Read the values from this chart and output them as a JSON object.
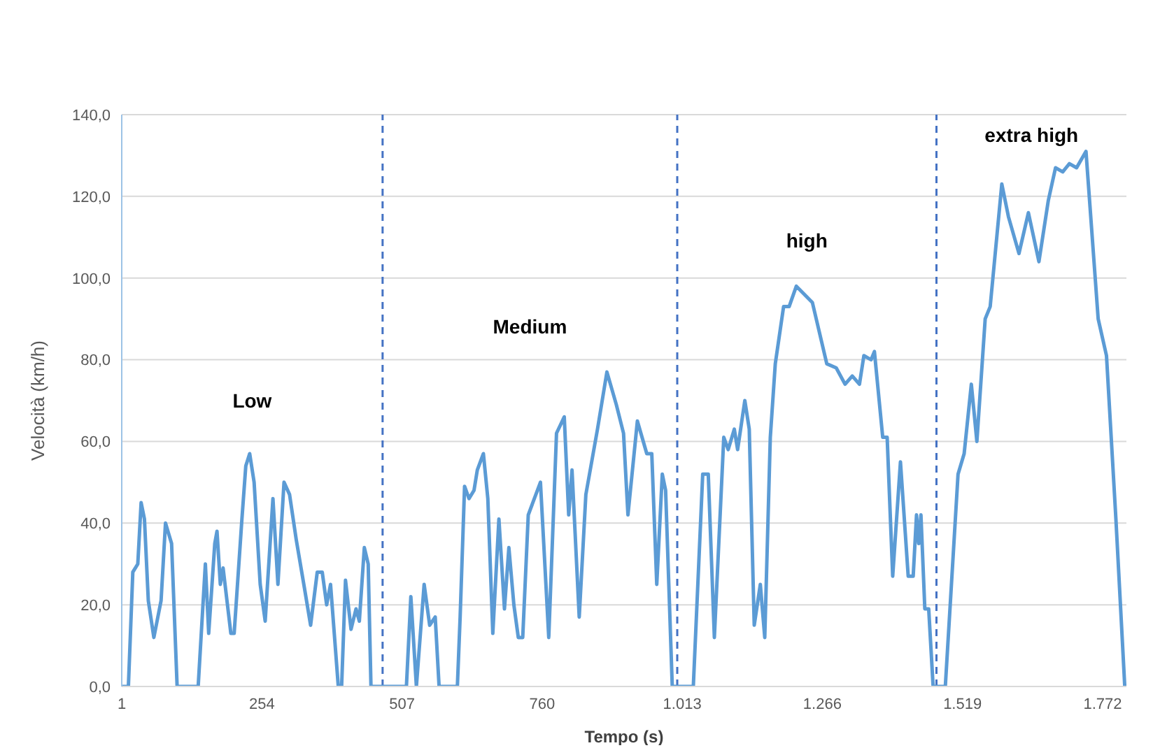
{
  "chart_data": {
    "type": "line",
    "xlabel": "Tempo (s)",
    "ylabel": "Velocità (km/h)",
    "x": [
      1,
      13,
      21,
      30,
      36,
      42,
      49,
      59,
      72,
      80,
      91,
      101,
      139,
      152,
      158,
      169,
      173,
      179,
      184,
      198,
      204,
      218,
      225,
      232,
      240,
      251,
      260,
      274,
      283,
      294,
      304,
      316,
      331,
      342,
      354,
      363,
      371,
      378,
      392,
      398,
      405,
      415,
      424,
      430,
      439,
      446,
      451,
      515,
      523,
      533,
      547,
      557,
      567,
      574,
      607,
      612,
      620,
      628,
      637,
      643,
      654,
      662,
      671,
      682,
      692,
      700,
      709,
      717,
      725,
      735,
      746,
      757,
      772,
      786,
      800,
      808,
      814,
      827,
      839,
      860,
      877,
      894,
      907,
      915,
      932,
      949,
      958,
      967,
      977,
      983,
      995,
      1033,
      1050,
      1060,
      1071,
      1088,
      1096,
      1107,
      1113,
      1126,
      1134,
      1143,
      1154,
      1162,
      1172,
      1181,
      1196,
      1206,
      1219,
      1248,
      1274,
      1291,
      1307,
      1320,
      1333,
      1341,
      1354,
      1360,
      1375,
      1383,
      1393,
      1407,
      1421,
      1430,
      1436,
      1440,
      1444,
      1451,
      1458,
      1466,
      1488,
      1511,
      1522,
      1535,
      1545,
      1560,
      1569,
      1590,
      1602,
      1621,
      1638,
      1657,
      1674,
      1687,
      1700,
      1712,
      1725,
      1742,
      1764,
      1779,
      1796,
      1812
    ],
    "series": [
      {
        "color": "#5b9bd5",
        "values": [
          0,
          0,
          28,
          30,
          45,
          41,
          21,
          12,
          21,
          40,
          35,
          0,
          0,
          30,
          13,
          35,
          38,
          25,
          29,
          13,
          13,
          41,
          54,
          57,
          50,
          25,
          16,
          46,
          25,
          50,
          47,
          36,
          24,
          15,
          28,
          28,
          20,
          25,
          0,
          0,
          26,
          14,
          19,
          16,
          34,
          30,
          0,
          0,
          22,
          0,
          25,
          15,
          17,
          0,
          0,
          17,
          49,
          46,
          48,
          53,
          57,
          46,
          13,
          41,
          19,
          34,
          20,
          12,
          12,
          42,
          46,
          50,
          12,
          62,
          66,
          42,
          53,
          17,
          47,
          63,
          77,
          69,
          62,
          42,
          65,
          57,
          57,
          25,
          52,
          48,
          0,
          0,
          52,
          52,
          12,
          61,
          58,
          63,
          58,
          70,
          63,
          15,
          25,
          12,
          61,
          79,
          93,
          93,
          98,
          94,
          79,
          78,
          74,
          76,
          74,
          81,
          80,
          82,
          61,
          61,
          27,
          55,
          27,
          27,
          42,
          35,
          42,
          19,
          19,
          0,
          0,
          52,
          57,
          74,
          60,
          90,
          93,
          123,
          115,
          106,
          116,
          104,
          119,
          127,
          126,
          128,
          127,
          131,
          90,
          81,
          41,
          0
        ]
      }
    ],
    "xlim": [
      1,
      1815
    ],
    "xticks": [
      1,
      254,
      507,
      760,
      {
        "value": 1013,
        "label": "1.013"
      },
      {
        "value": 1266,
        "label": "1.266"
      },
      {
        "value": 1519,
        "label": "1.519"
      },
      {
        "value": 1772,
        "label": "1.772"
      }
    ],
    "ylim": [
      0,
      140
    ],
    "yticks": [
      {
        "value": 0,
        "label": "0,0"
      },
      {
        "value": 20,
        "label": "20,0"
      },
      {
        "value": 40,
        "label": "40,0"
      },
      {
        "value": 60,
        "label": "60,0"
      },
      {
        "value": 80,
        "label": "80,0"
      },
      {
        "value": 100,
        "label": "100,0"
      },
      {
        "value": 120,
        "label": "120,0"
      },
      {
        "value": 140,
        "label": "140,0"
      }
    ],
    "grid": "y",
    "marker": "none",
    "line_style": "solid",
    "legend": false,
    "ref_lines": [
      {
        "axis": "x",
        "value": 472,
        "color": "#4472c4",
        "line_style": "dashed"
      },
      {
        "axis": "x",
        "value": 1004,
        "color": "#4472c4",
        "line_style": "dashed"
      },
      {
        "axis": "x",
        "value": 1472,
        "color": "#4472c4",
        "line_style": "dashed"
      }
    ],
    "annotations": [
      "Low",
      "Medium",
      "high",
      "extra high"
    ]
  }
}
